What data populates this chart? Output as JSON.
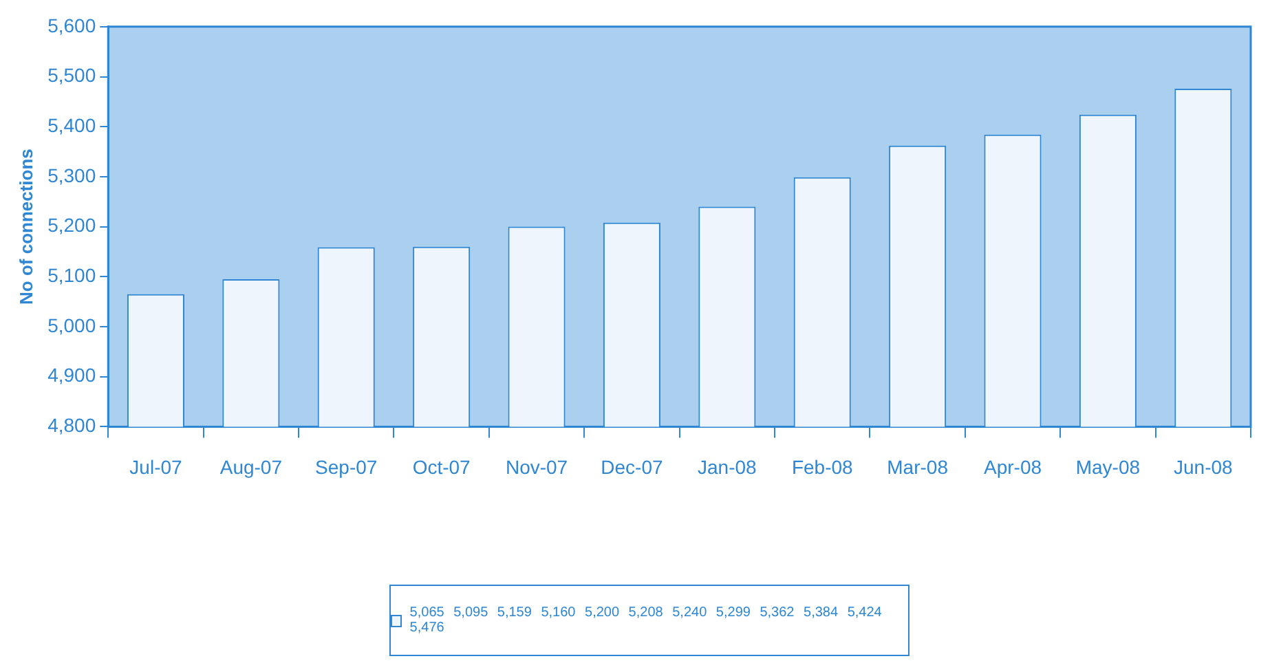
{
  "chart_data": {
    "type": "bar",
    "ylabel": "No of connections",
    "categories": [
      "Jul-07",
      "Aug-07",
      "Sep-07",
      "Oct-07",
      "Nov-07",
      "Dec-07",
      "Jan-08",
      "Feb-08",
      "Mar-08",
      "Apr-08",
      "May-08",
      "Jun-08"
    ],
    "series": [
      {
        "name": "5,065 5,095 5,159 5,160 5,200 5,208 5,240 5,299 5,362 5,384 5,424 5,476",
        "color": "#eef5fc",
        "values": [
          5065,
          5095,
          5159,
          5160,
          5200,
          5208,
          5240,
          5299,
          5362,
          5384,
          5424,
          5476
        ]
      }
    ],
    "ylim": [
      4800,
      5600
    ],
    "yticks": [
      {
        "value": 4800,
        "label": "4,800"
      },
      {
        "value": 4900,
        "label": "4,900"
      },
      {
        "value": 5000,
        "label": "5,000"
      },
      {
        "value": 5100,
        "label": "5,100"
      },
      {
        "value": 5200,
        "label": "5,200"
      },
      {
        "value": 5300,
        "label": "5,300"
      },
      {
        "value": 5400,
        "label": "5,400"
      },
      {
        "value": 5500,
        "label": "5,500"
      },
      {
        "value": 5600,
        "label": "5,600"
      }
    ],
    "grid": false,
    "legend": "bottom"
  }
}
